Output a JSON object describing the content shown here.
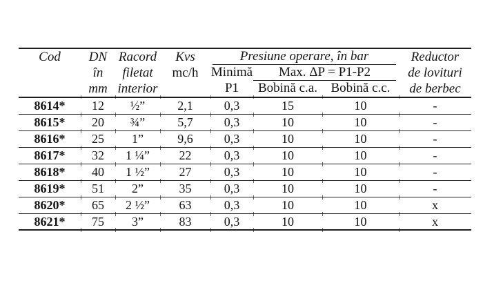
{
  "table": {
    "header": {
      "cod": "Cod",
      "dn": [
        "DN",
        "în",
        "mm"
      ],
      "racord": [
        "Racord",
        "filetat",
        "interior"
      ],
      "kvs": [
        "Kvs",
        "mc/h"
      ],
      "presiune": "Presiune operare, în bar",
      "minima": [
        "Minimă",
        "P1"
      ],
      "max_dp": "Max. ΔP = P1-P2",
      "bobina_ca": "Bobină c.a.",
      "bobina_cc": "Bobină c.c.",
      "reductor": [
        "Reductor",
        "de lovituri",
        "de berbec"
      ]
    },
    "rows": [
      {
        "cod": "8614*",
        "dn": "12",
        "racord": "½”",
        "kvs": "2,1",
        "p1": "0,3",
        "ca": "15",
        "cc": "10",
        "red": "-"
      },
      {
        "cod": "8615*",
        "dn": "20",
        "racord": "¾”",
        "kvs": "5,7",
        "p1": "0,3",
        "ca": "10",
        "cc": "10",
        "red": "-"
      },
      {
        "cod": "8616*",
        "dn": "25",
        "racord": "1”",
        "kvs": "9,6",
        "p1": "0,3",
        "ca": "10",
        "cc": "10",
        "red": "-"
      },
      {
        "cod": "8617*",
        "dn": "32",
        "racord": "1 ¼”",
        "kvs": "22",
        "p1": "0,3",
        "ca": "10",
        "cc": "10",
        "red": "-"
      },
      {
        "cod": "8618*",
        "dn": "40",
        "racord": "1 ½”",
        "kvs": "27",
        "p1": "0,3",
        "ca": "10",
        "cc": "10",
        "red": "-"
      },
      {
        "cod": "8619*",
        "dn": "51",
        "racord": "2”",
        "kvs": "35",
        "p1": "0,3",
        "ca": "10",
        "cc": "10",
        "red": "-"
      },
      {
        "cod": "8620*",
        "dn": "65",
        "racord": "2 ½”",
        "kvs": "63",
        "p1": "0,3",
        "ca": "10",
        "cc": "10",
        "red": "x"
      },
      {
        "cod": "8621*",
        "dn": "75",
        "racord": "3”",
        "kvs": "83",
        "p1": "0,3",
        "ca": "10",
        "cc": "10",
        "red": "x"
      }
    ]
  }
}
